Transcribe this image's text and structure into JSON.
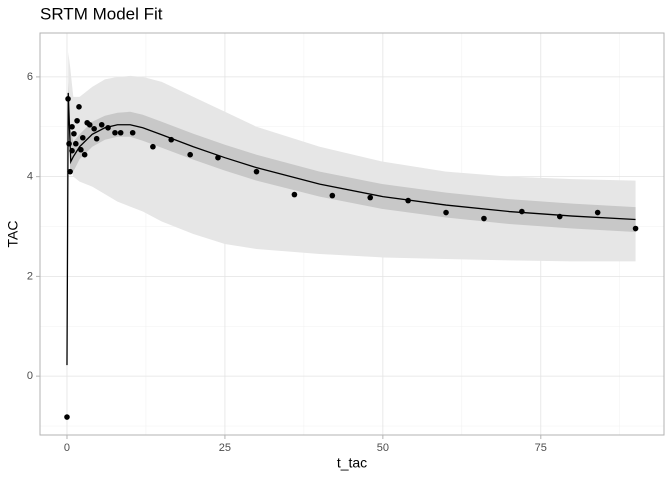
{
  "chart_data": {
    "type": "scatter",
    "title": "SRTM Model Fit",
    "x_label": "t_tac",
    "y_label": "TAC",
    "xlim": [
      -4.27,
      94.5
    ],
    "ylim": [
      -1.18,
      6.88
    ],
    "xticks": [
      0,
      25,
      50,
      75
    ],
    "yticks": [
      0,
      2,
      4,
      6
    ],
    "minor_xticks": [
      12.5,
      37.5,
      62.5,
      87.5
    ],
    "minor_yticks": [
      -1,
      1,
      3,
      5
    ],
    "grid": true,
    "bands": [
      {
        "color": "#e6e6e6",
        "x": [
          0.2,
          0.5,
          1,
          2,
          4,
          6,
          8,
          10,
          12,
          15,
          20,
          25,
          30,
          40,
          50,
          60,
          70,
          80,
          90
        ],
        "upper": [
          6.5,
          6.2,
          5.6,
          5.6,
          5.8,
          5.95,
          6.0,
          6.02,
          6.0,
          5.9,
          5.6,
          5.3,
          5.0,
          4.6,
          4.3,
          4.1,
          4.0,
          3.95,
          3.92
        ],
        "lower": [
          5.0,
          4.3,
          4.0,
          3.9,
          3.8,
          3.65,
          3.5,
          3.4,
          3.3,
          3.1,
          2.85,
          2.65,
          2.55,
          2.45,
          2.38,
          2.35,
          2.32,
          2.3,
          2.3
        ]
      },
      {
        "color": "#c8c8c8",
        "x": [
          0.2,
          0.5,
          1,
          2,
          4,
          6,
          8,
          10,
          12,
          15,
          20,
          25,
          30,
          40,
          50,
          60,
          70,
          80,
          90
        ],
        "upper": [
          5.9,
          5.0,
          4.7,
          4.85,
          5.1,
          5.22,
          5.28,
          5.3,
          5.24,
          5.1,
          4.86,
          4.64,
          4.44,
          4.1,
          3.85,
          3.68,
          3.55,
          3.46,
          3.39
        ],
        "lower": [
          5.4,
          4.1,
          4.1,
          4.35,
          4.6,
          4.74,
          4.8,
          4.8,
          4.72,
          4.58,
          4.34,
          4.12,
          3.92,
          3.6,
          3.35,
          3.18,
          3.05,
          2.96,
          2.89
        ]
      }
    ],
    "fit": {
      "color": "#000000",
      "x": [
        0,
        0.2,
        0.6,
        1,
        2,
        4,
        6,
        8,
        10,
        12,
        15,
        20,
        25,
        30,
        40,
        50,
        60,
        70,
        80,
        90
      ],
      "values": [
        0.22,
        5.68,
        4.3,
        4.4,
        4.6,
        4.85,
        4.98,
        5.04,
        5.04,
        4.98,
        4.84,
        4.6,
        4.38,
        4.18,
        3.85,
        3.6,
        3.43,
        3.3,
        3.21,
        3.14
      ]
    },
    "points": {
      "color": "#000000",
      "x": [
        0,
        0.17,
        0.33,
        0.5,
        0.8,
        0.8,
        1.1,
        1.4,
        1.6,
        1.9,
        2.2,
        2.5,
        2.8,
        3.2,
        3.6,
        4.3,
        4.7,
        5.5,
        6.5,
        7.6,
        8.5,
        10.4,
        13.6,
        16.5,
        19.5,
        23.9,
        30,
        36,
        42,
        48,
        54,
        60,
        66,
        72,
        78,
        84,
        90
      ],
      "values": [
        -0.82,
        5.56,
        4.66,
        4.1,
        4.52,
        5.0,
        4.86,
        4.66,
        5.12,
        5.4,
        4.54,
        4.78,
        4.44,
        5.08,
        5.04,
        4.96,
        4.76,
        5.04,
        4.98,
        4.88,
        4.88,
        4.88,
        4.6,
        4.74,
        4.44,
        4.38,
        4.1,
        3.64,
        3.62,
        3.58,
        3.52,
        3.28,
        3.16,
        3.3,
        3.2,
        3.28,
        2.96
      ]
    }
  }
}
